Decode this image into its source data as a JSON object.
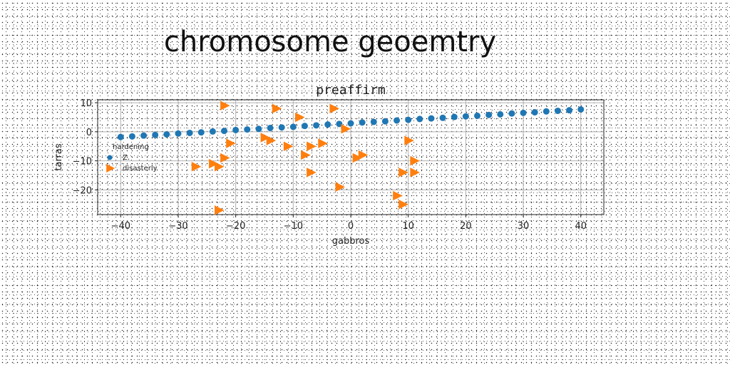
{
  "page": {
    "title": "chromosome geoemtry"
  },
  "chart_data": {
    "type": "scatter",
    "title": "preaffirm",
    "xlabel": "gabbros",
    "ylabel": "tarras",
    "xlim": [
      -44,
      44
    ],
    "ylim": [
      -28.5,
      11
    ],
    "xticks": [
      -40,
      -30,
      -20,
      -10,
      0,
      10,
      20,
      30,
      40
    ],
    "yticks": [
      10,
      0,
      -10,
      -20
    ],
    "grid": true,
    "legend": {
      "title": "hardening",
      "position": "center-left"
    },
    "series": [
      {
        "name": "Z.",
        "marker": "circle",
        "color": "#1f77b4",
        "x": [
          -40,
          -38,
          -36,
          -34,
          -32,
          -30,
          -28,
          -26,
          -24,
          -22,
          -20,
          -18,
          -16,
          -14,
          -12,
          -10,
          -8,
          -6,
          -4,
          -2,
          0,
          2,
          4,
          6,
          8,
          10,
          12,
          14,
          16,
          18,
          20,
          22,
          24,
          26,
          28,
          30,
          32,
          34,
          36,
          38,
          40
        ],
        "y": [
          -1.8,
          -1.6,
          -1.3,
          -1.1,
          -0.9,
          -0.6,
          -0.4,
          -0.2,
          0.1,
          0.3,
          0.6,
          0.8,
          1.0,
          1.3,
          1.5,
          1.7,
          2.0,
          2.2,
          2.5,
          2.7,
          2.9,
          3.2,
          3.4,
          3.6,
          3.9,
          4.1,
          4.4,
          4.6,
          4.8,
          5.1,
          5.3,
          5.5,
          5.8,
          6.0,
          6.3,
          6.5,
          6.7,
          7.0,
          7.2,
          7.4,
          7.7
        ]
      },
      {
        "name": "disasterly",
        "marker": "triangle-right",
        "color": "#ff7f0e",
        "x": [
          -22,
          -13,
          -9,
          -3,
          -1,
          -15,
          -14,
          -11,
          -8,
          -7,
          -5,
          -21,
          -22,
          1,
          2,
          10,
          11,
          -27,
          -24,
          -23,
          -7,
          9,
          11,
          -2,
          8,
          9,
          -23
        ],
        "y": [
          9,
          8,
          5,
          8,
          1,
          -2,
          -3,
          -5,
          -8,
          -5,
          -4,
          -4,
          -9,
          -9,
          -8,
          -3,
          -10,
          -12,
          -11,
          -12,
          -14,
          -14,
          -14,
          -19,
          -22,
          -25,
          -27
        ]
      }
    ]
  }
}
